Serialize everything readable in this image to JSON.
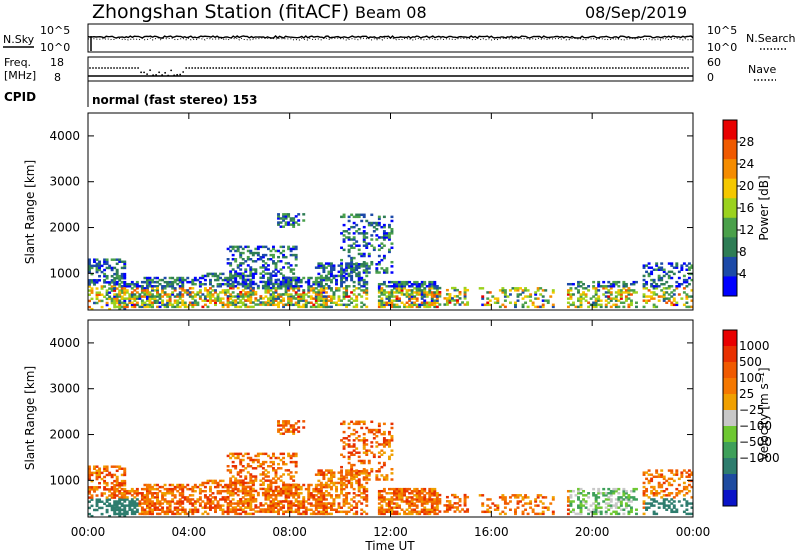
{
  "header": {
    "station": "Zhongshan Station (fitACF)",
    "beam": "Beam 08",
    "date": "08/Sep/2019"
  },
  "nsky_panel": {
    "left_label": "N.Sky",
    "right_label": "N.Search",
    "left_ticks": [
      "10^5",
      "10^0"
    ],
    "right_ticks": [
      "10^5",
      "10^0"
    ]
  },
  "freq_panel": {
    "left_label_line1": "Freq.",
    "left_label_line2": "[MHz]",
    "left_ticks": [
      "18",
      "8"
    ],
    "right_label": "Nave",
    "right_ticks": [
      "60",
      "0"
    ],
    "cpid_label": "CPID",
    "cpid_text": "normal (fast stereo) 153"
  },
  "chart_data": [
    {
      "type": "heatmap",
      "title": "",
      "ylabel": "Slant Range [km]",
      "ylim": [
        200,
        4500
      ],
      "yticks": [
        "4000",
        "3000",
        "2000",
        "1000"
      ],
      "ytick_values": [
        4000,
        3000,
        2000,
        1000
      ],
      "xlabel": "",
      "colorbar": {
        "label": "Power [dB]",
        "range": [
          0,
          32
        ],
        "ticks": [
          "28",
          "24",
          "20",
          "16",
          "12",
          "8",
          "4"
        ],
        "tick_values": [
          28,
          24,
          20,
          16,
          12,
          8,
          4
        ],
        "colors": [
          "#0000ff",
          "#1c4aa8",
          "#2e7d55",
          "#4aa04a",
          "#9bd21e",
          "#f5c800",
          "#f58c00",
          "#f05a00",
          "#e80000"
        ]
      }
    },
    {
      "type": "heatmap",
      "title": "",
      "ylabel": "Slant Range [km]",
      "ylim": [
        200,
        4500
      ],
      "yticks": [
        "4000",
        "3000",
        "2000",
        "1000"
      ],
      "ytick_values": [
        4000,
        3000,
        2000,
        1000
      ],
      "xlabel": "Time UT",
      "xlim": [
        "00:00",
        "24:00"
      ],
      "xticks": [
        "00:00",
        "04:00",
        "08:00",
        "12:00",
        "16:00",
        "20:00",
        "00:00"
      ],
      "colorbar": {
        "label": "Velocity [m s⁻¹]",
        "ticks": [
          "1000",
          "500",
          "100",
          "25",
          "−25",
          "−100",
          "−500",
          "−1000"
        ],
        "colors": [
          "#0a14c8",
          "#1e4ba0",
          "#2e7d6e",
          "#3ea05a",
          "#6ec832",
          "#c8c8c8",
          "#f0a000",
          "#f57800",
          "#f05a00",
          "#e83000",
          "#e80000"
        ]
      }
    }
  ]
}
